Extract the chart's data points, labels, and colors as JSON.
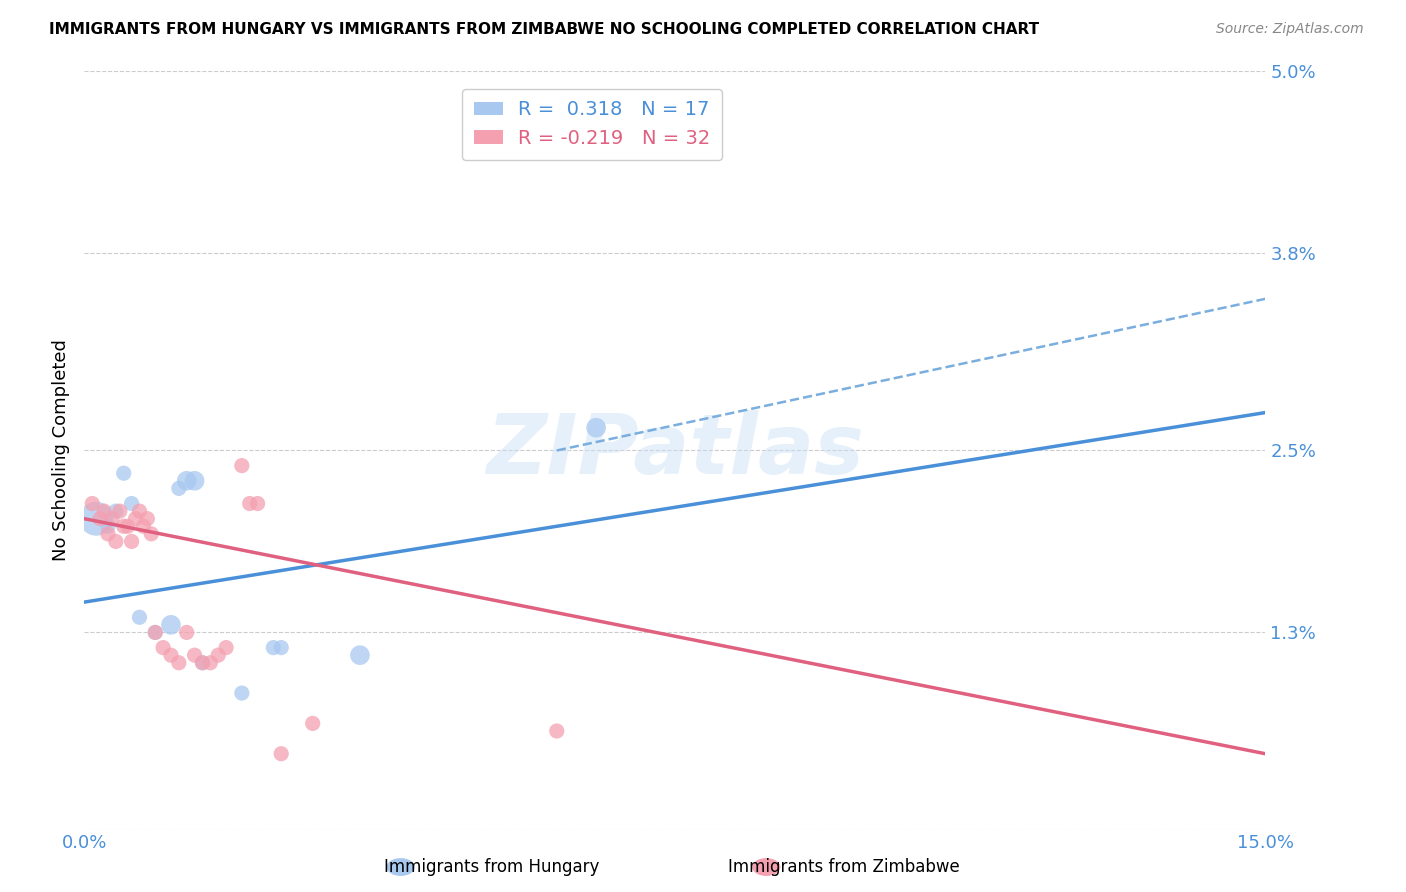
{
  "title": "IMMIGRANTS FROM HUNGARY VS IMMIGRANTS FROM ZIMBABWE NO SCHOOLING COMPLETED CORRELATION CHART",
  "source": "Source: ZipAtlas.com",
  "ylabel": "No Schooling Completed",
  "xlim": [
    0.0,
    15.0
  ],
  "ylim": [
    0.0,
    5.0
  ],
  "yticks": [
    0.0,
    1.3,
    2.5,
    3.8,
    5.0
  ],
  "ytick_labels": [
    "",
    "1.3%",
    "2.5%",
    "3.8%",
    "5.0%"
  ],
  "xticks": [
    0.0,
    3.75,
    7.5,
    11.25,
    15.0
  ],
  "xtick_labels": [
    "0.0%",
    "",
    "",
    "",
    "15.0%"
  ],
  "legend_hungary_r": "R =  0.318",
  "legend_hungary_n": "N = 17",
  "legend_zimbabwe_r": "R = -0.219",
  "legend_zimbabwe_n": "N = 32",
  "hungary_color": "#a8c8f0",
  "zimbabwe_color": "#f4a0b0",
  "hungary_line_color": "#4a90d9",
  "zimbabwe_line_color": "#e06080",
  "dashed_line_color": "#7aaede",
  "hungary_points_x": [
    0.15,
    0.3,
    0.4,
    0.5,
    0.6,
    0.7,
    0.9,
    1.1,
    1.2,
    1.3,
    1.4,
    1.5,
    2.0,
    2.4,
    2.5,
    3.5,
    6.5
  ],
  "hungary_points_y": [
    2.05,
    2.0,
    2.1,
    2.35,
    2.15,
    1.4,
    1.3,
    1.35,
    2.25,
    2.3,
    2.3,
    1.1,
    0.9,
    1.2,
    1.2,
    1.15,
    2.65
  ],
  "hungary_sizes": [
    600,
    120,
    120,
    120,
    120,
    120,
    120,
    200,
    120,
    200,
    200,
    120,
    120,
    120,
    120,
    200,
    200
  ],
  "zimbabwe_points_x": [
    0.1,
    0.2,
    0.25,
    0.3,
    0.35,
    0.4,
    0.45,
    0.5,
    0.55,
    0.6,
    0.65,
    0.7,
    0.75,
    0.8,
    0.85,
    0.9,
    1.0,
    1.1,
    1.2,
    1.3,
    1.4,
    1.5,
    1.6,
    1.7,
    1.8,
    2.0,
    2.1,
    2.2,
    2.5,
    2.9,
    6.0,
    7.5
  ],
  "zimbabwe_points_y": [
    2.15,
    2.05,
    2.1,
    1.95,
    2.05,
    1.9,
    2.1,
    2.0,
    2.0,
    1.9,
    2.05,
    2.1,
    2.0,
    2.05,
    1.95,
    1.3,
    1.2,
    1.15,
    1.1,
    1.3,
    1.15,
    1.1,
    1.1,
    1.15,
    1.2,
    2.4,
    2.15,
    2.15,
    0.5,
    0.7,
    0.65,
    4.5
  ],
  "zimbabwe_sizes": [
    120,
    120,
    120,
    120,
    120,
    120,
    120,
    120,
    120,
    120,
    120,
    120,
    120,
    120,
    120,
    120,
    120,
    120,
    120,
    120,
    120,
    120,
    120,
    120,
    120,
    120,
    120,
    120,
    120,
    120,
    120,
    200
  ],
  "hungary_trend_x": [
    0.0,
    15.0
  ],
  "hungary_trend_y": [
    1.5,
    2.75
  ],
  "zimbabwe_trend_x": [
    0.0,
    15.0
  ],
  "zimbabwe_trend_y": [
    2.05,
    0.5
  ],
  "dashed_trend_x": [
    6.0,
    15.0
  ],
  "dashed_trend_y": [
    2.5,
    3.5
  ],
  "watermark": "ZIPatlas",
  "background_color": "#ffffff",
  "grid_color": "#cccccc",
  "title_fontsize": 11,
  "source_fontsize": 10,
  "tick_fontsize": 13,
  "ylabel_fontsize": 13,
  "legend_fontsize": 14
}
